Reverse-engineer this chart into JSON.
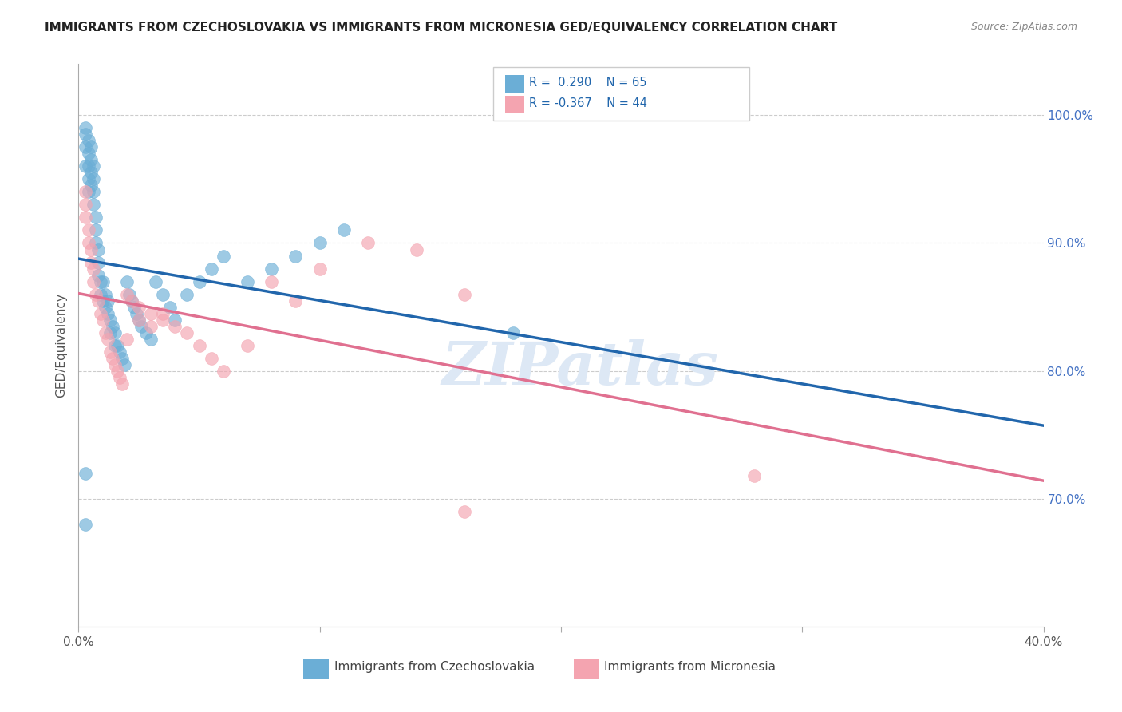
{
  "title": "IMMIGRANTS FROM CZECHOSLOVAKIA VS IMMIGRANTS FROM MICRONESIA GED/EQUIVALENCY CORRELATION CHART",
  "source": "Source: ZipAtlas.com",
  "ylabel": "GED/Equivalency",
  "ytick_labels": [
    "100.0%",
    "90.0%",
    "80.0%",
    "70.0%"
  ],
  "ytick_values": [
    1.0,
    0.9,
    0.8,
    0.7
  ],
  "xlim": [
    0.0,
    0.4
  ],
  "ylim": [
    0.6,
    1.04
  ],
  "legend_label1": "Immigrants from Czechoslovakia",
  "legend_label2": "Immigrants from Micronesia",
  "R1": 0.29,
  "N1": 65,
  "R2": -0.367,
  "N2": 44,
  "blue_color": "#6baed6",
  "pink_color": "#f4a4b0",
  "blue_line_color": "#2166ac",
  "pink_line_color": "#e07090",
  "watermark": "ZIPatlas",
  "blue_x": [
    0.003,
    0.003,
    0.003,
    0.003,
    0.004,
    0.004,
    0.004,
    0.004,
    0.004,
    0.005,
    0.005,
    0.005,
    0.005,
    0.006,
    0.006,
    0.006,
    0.006,
    0.007,
    0.007,
    0.007,
    0.008,
    0.008,
    0.008,
    0.009,
    0.009,
    0.01,
    0.01,
    0.011,
    0.011,
    0.012,
    0.012,
    0.013,
    0.013,
    0.014,
    0.015,
    0.015,
    0.016,
    0.017,
    0.018,
    0.019,
    0.02,
    0.021,
    0.022,
    0.023,
    0.024,
    0.025,
    0.026,
    0.028,
    0.03,
    0.032,
    0.035,
    0.038,
    0.04,
    0.045,
    0.05,
    0.055,
    0.06,
    0.07,
    0.08,
    0.09,
    0.1,
    0.11,
    0.18,
    0.003,
    0.003
  ],
  "blue_y": [
    0.99,
    0.985,
    0.975,
    0.96,
    0.98,
    0.97,
    0.96,
    0.95,
    0.94,
    0.975,
    0.965,
    0.955,
    0.945,
    0.96,
    0.95,
    0.94,
    0.93,
    0.92,
    0.91,
    0.9,
    0.895,
    0.885,
    0.875,
    0.87,
    0.86,
    0.87,
    0.855,
    0.86,
    0.85,
    0.855,
    0.845,
    0.84,
    0.83,
    0.835,
    0.83,
    0.82,
    0.82,
    0.815,
    0.81,
    0.805,
    0.87,
    0.86,
    0.855,
    0.85,
    0.845,
    0.84,
    0.835,
    0.83,
    0.825,
    0.87,
    0.86,
    0.85,
    0.84,
    0.86,
    0.87,
    0.88,
    0.89,
    0.87,
    0.88,
    0.89,
    0.9,
    0.91,
    0.83,
    0.72,
    0.68
  ],
  "pink_x": [
    0.003,
    0.003,
    0.003,
    0.004,
    0.004,
    0.005,
    0.005,
    0.006,
    0.006,
    0.007,
    0.008,
    0.009,
    0.01,
    0.011,
    0.012,
    0.013,
    0.014,
    0.015,
    0.016,
    0.017,
    0.018,
    0.02,
    0.022,
    0.025,
    0.03,
    0.035,
    0.04,
    0.045,
    0.05,
    0.055,
    0.06,
    0.07,
    0.08,
    0.09,
    0.1,
    0.12,
    0.14,
    0.16,
    0.02,
    0.025,
    0.03,
    0.035,
    0.28,
    0.16
  ],
  "pink_y": [
    0.94,
    0.93,
    0.92,
    0.91,
    0.9,
    0.895,
    0.885,
    0.88,
    0.87,
    0.86,
    0.855,
    0.845,
    0.84,
    0.83,
    0.825,
    0.815,
    0.81,
    0.805,
    0.8,
    0.795,
    0.79,
    0.86,
    0.855,
    0.85,
    0.845,
    0.84,
    0.835,
    0.83,
    0.82,
    0.81,
    0.8,
    0.82,
    0.87,
    0.855,
    0.88,
    0.9,
    0.895,
    0.86,
    0.825,
    0.84,
    0.835,
    0.845,
    0.718,
    0.69
  ]
}
